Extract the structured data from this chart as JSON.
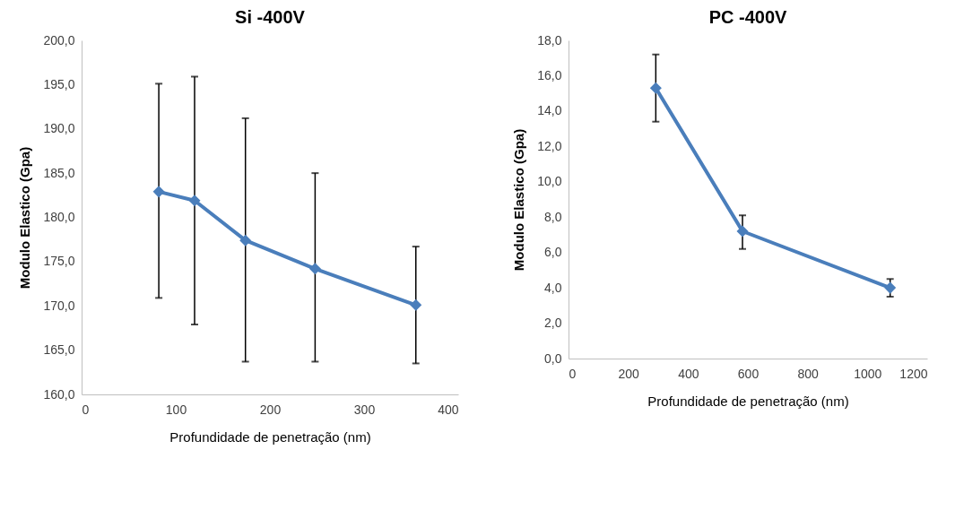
{
  "chart_data": [
    {
      "type": "line",
      "title": "Si  -400V",
      "xlabel": "Profundidade de penetração (nm)",
      "ylabel": "Modulo Elastico (Gpa)",
      "x": [
        82,
        120,
        174,
        248,
        355
      ],
      "marker": "diamond",
      "line_style": "solid",
      "grid": false,
      "legend": false,
      "series": [
        {
          "color": "#4a7ebb",
          "values": [
            182.9,
            181.9,
            177.4,
            174.2,
            170.1
          ],
          "errors": [
            [
              170.9,
              195.1
            ],
            [
              167.9,
              195.9
            ],
            [
              163.7,
              191.2
            ],
            [
              163.7,
              185.0
            ],
            [
              163.5,
              176.7
            ]
          ]
        }
      ],
      "xlim": [
        0,
        400
      ],
      "xticks": [
        0,
        100,
        200,
        300,
        400
      ],
      "ylim": [
        160,
        200
      ],
      "yticks": [
        {
          "value": 160,
          "label": "160,0"
        },
        {
          "value": 165,
          "label": "165,0"
        },
        {
          "value": 170,
          "label": "170,0"
        },
        {
          "value": 175,
          "label": "175,0"
        },
        {
          "value": 180,
          "label": "180,0"
        },
        {
          "value": 185,
          "label": "185,0"
        },
        {
          "value": 190,
          "label": "190,0"
        },
        {
          "value": 195,
          "label": "195,0"
        },
        {
          "value": 200,
          "label": "200,0"
        }
      ]
    },
    {
      "type": "line",
      "title": "PC   -400V",
      "xlabel": "Profundidade de penetração (nm)",
      "ylabel": "Modulo Elastico (Gpa)",
      "x": [
        292,
        582,
        1076
      ],
      "marker": "diamond",
      "line_style": "solid",
      "grid": false,
      "legend": false,
      "series": [
        {
          "color": "#4a7ebb",
          "values": [
            15.3,
            7.2,
            4.0
          ],
          "errors": [
            [
              13.4,
              17.2
            ],
            [
              6.2,
              8.1
            ],
            [
              3.5,
              4.5
            ]
          ]
        }
      ],
      "xlim": [
        0,
        1200
      ],
      "xticks": [
        0,
        200,
        400,
        600,
        800,
        1000,
        1200
      ],
      "ylim": [
        0,
        18
      ],
      "yticks": [
        {
          "value": 0,
          "label": "0,0"
        },
        {
          "value": 2,
          "label": "2,0"
        },
        {
          "value": 4,
          "label": "4,0"
        },
        {
          "value": 6,
          "label": "6,0"
        },
        {
          "value": 8,
          "label": "8,0"
        },
        {
          "value": 10,
          "label": "10,0"
        },
        {
          "value": 12,
          "label": "12,0"
        },
        {
          "value": 14,
          "label": "14,0"
        },
        {
          "value": 16,
          "label": "16,0"
        },
        {
          "value": 18,
          "label": "18,0"
        }
      ]
    }
  ]
}
